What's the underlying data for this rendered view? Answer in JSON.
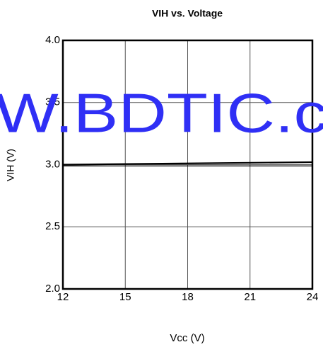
{
  "chart_data": {
    "type": "line",
    "title": "VIH vs. Voltage",
    "x_label": "Vcc (V)",
    "y_label": "VIH (V)",
    "annotation": "W.BDTIC.c",
    "x": [
      12,
      24
    ],
    "series": [
      {
        "color": "#000000",
        "values": [
          3.0,
          3.02
        ]
      },
      {
        "color": "#000000",
        "values": [
          2.99,
          2.99
        ]
      }
    ],
    "xlim": [
      12,
      24
    ],
    "xticks": [
      12,
      15,
      18,
      21,
      24
    ],
    "ylim": [
      2.0,
      4.0
    ],
    "yticks": [
      {
        "value": 2.0,
        "label": "2.0"
      },
      2.5,
      {
        "value": 3.0,
        "label": "3.0"
      },
      3.5,
      {
        "value": 4.0,
        "label": "4.0"
      }
    ],
    "grid": true
  }
}
